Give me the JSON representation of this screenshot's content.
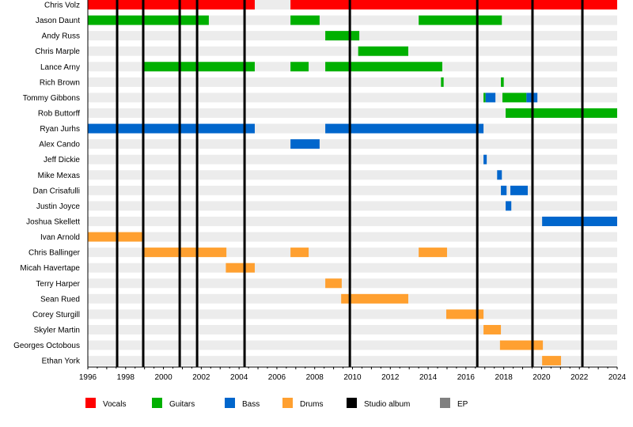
{
  "chart_data": {
    "type": "timeline",
    "xlim": [
      1996,
      2024
    ],
    "x_ticks": [
      1996,
      1998,
      2000,
      2002,
      2004,
      2006,
      2008,
      2010,
      2012,
      2014,
      2016,
      2018,
      2020,
      2022,
      2024
    ],
    "grid": false,
    "legend_placement": "bottom",
    "roles": [
      {
        "key": "vocals",
        "label": "Vocals",
        "color": "#ff0000"
      },
      {
        "key": "guitars",
        "label": "Guitars",
        "color": "#00b000"
      },
      {
        "key": "bass",
        "label": "Bass",
        "color": "#0066cc"
      },
      {
        "key": "drums",
        "label": "Drums",
        "color": "#ffa030"
      },
      {
        "key": "album",
        "label": "Studio album",
        "color": "#000000"
      },
      {
        "key": "ep",
        "label": "EP",
        "color": "#808080"
      }
    ],
    "studio_albums": [
      1997.55,
      1998.93,
      2000.86,
      2001.78,
      2004.29,
      2009.86,
      2016.6,
      2019.52,
      2022.16
    ],
    "members": [
      {
        "name": "Chris Volz",
        "periods": [
          [
            "vocals",
            1996,
            2004.83
          ],
          [
            "vocals",
            2006.72,
            2024
          ]
        ]
      },
      {
        "name": "Jason Daunt",
        "periods": [
          [
            "guitars",
            1996,
            2002.4
          ],
          [
            "guitars",
            2006.72,
            2008.26
          ],
          [
            "guitars",
            2013.5,
            2017.9
          ]
        ]
      },
      {
        "name": "Andy Russ",
        "periods": [
          [
            "guitars",
            2008.56,
            2010.36
          ]
        ]
      },
      {
        "name": "Chris Marple",
        "periods": [
          [
            "guitars",
            2010.3,
            2012.95
          ]
        ]
      },
      {
        "name": "Lance Arny",
        "periods": [
          [
            "guitars",
            1998.93,
            2004.83
          ],
          [
            "guitars",
            2006.72,
            2007.68
          ],
          [
            "guitars",
            2008.56,
            2014.75
          ]
        ]
      },
      {
        "name": "Rich Brown",
        "periods": [
          [
            "guitars",
            2014.68,
            2014.82
          ],
          [
            "guitars",
            2017.85,
            2018.0
          ]
        ]
      },
      {
        "name": "Tommy Gibbons",
        "periods": [
          [
            "guitars",
            2016.93,
            2017.04
          ],
          [
            "bass",
            2017.04,
            2017.56
          ],
          [
            "guitars",
            2017.93,
            2019.2
          ],
          [
            "bass",
            2019.2,
            2019.78
          ]
        ]
      },
      {
        "name": "Rob Buttorff",
        "periods": [
          [
            "guitars",
            2018.1,
            2024
          ]
        ]
      },
      {
        "name": "Ryan Jurhs",
        "periods": [
          [
            "bass",
            1996,
            2004.83
          ],
          [
            "bass",
            2008.56,
            2016.93
          ]
        ]
      },
      {
        "name": "Alex Cando",
        "periods": [
          [
            "bass",
            2006.72,
            2008.26
          ]
        ]
      },
      {
        "name": "Jeff Dickie",
        "periods": [
          [
            "bass",
            2016.93,
            2017.1
          ]
        ]
      },
      {
        "name": "Mike Mexas",
        "periods": [
          [
            "bass",
            2017.65,
            2017.9
          ]
        ]
      },
      {
        "name": "Dan Crisafulli",
        "periods": [
          [
            "bass",
            2017.85,
            2018.15
          ],
          [
            "bass",
            2018.35,
            2019.27
          ]
        ]
      },
      {
        "name": "Justin Joyce",
        "periods": [
          [
            "bass",
            2018.1,
            2018.4
          ]
        ]
      },
      {
        "name": "Joshua Skellett",
        "periods": [
          [
            "bass",
            2020.03,
            2024
          ]
        ]
      },
      {
        "name": "Ivan Arnold",
        "periods": [
          [
            "drums",
            1996,
            1998.9
          ]
        ]
      },
      {
        "name": "Chris Ballinger",
        "periods": [
          [
            "drums",
            1998.93,
            2003.33
          ],
          [
            "drums",
            2006.72,
            2007.68
          ],
          [
            "drums",
            2013.5,
            2015.0
          ]
        ]
      },
      {
        "name": "Micah Havertape",
        "periods": [
          [
            "drums",
            2003.3,
            2004.83
          ]
        ]
      },
      {
        "name": "Terry Harper",
        "periods": [
          [
            "drums",
            2008.56,
            2009.43
          ]
        ]
      },
      {
        "name": "Sean Rued",
        "periods": [
          [
            "drums",
            2009.4,
            2012.95
          ]
        ]
      },
      {
        "name": "Corey Sturgill",
        "periods": [
          [
            "drums",
            2014.96,
            2016.93
          ]
        ]
      },
      {
        "name": "Skyler Martin",
        "periods": [
          [
            "drums",
            2016.93,
            2017.85
          ]
        ]
      },
      {
        "name": "Georges Octobous",
        "periods": [
          [
            "drums",
            2017.8,
            2020.07
          ]
        ]
      },
      {
        "name": "Ethan York",
        "periods": [
          [
            "drums",
            2020.03,
            2021.03
          ]
        ]
      }
    ]
  }
}
